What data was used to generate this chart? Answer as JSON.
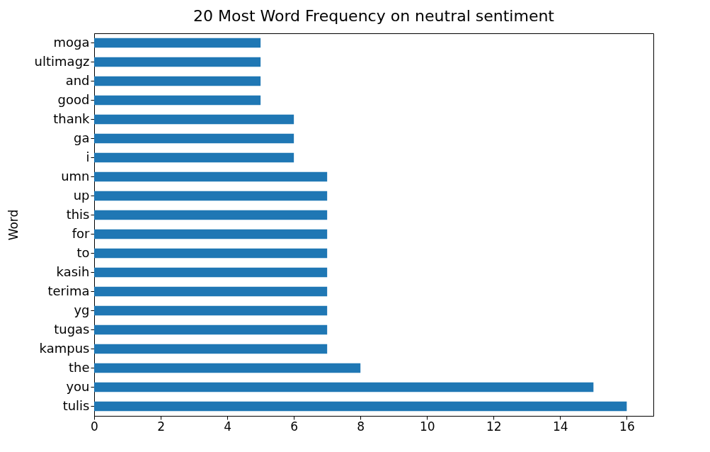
{
  "chart_data": {
    "type": "bar",
    "orientation": "horizontal",
    "title": "20 Most Word Frequency on neutral sentiment",
    "ylabel": "Word",
    "categories": [
      "moga",
      "ultimagz",
      "and",
      "good",
      "thank",
      "ga",
      "i",
      "umn",
      "up",
      "this",
      "for",
      "to",
      "kasih",
      "terima",
      "yg",
      "tugas",
      "kampus",
      "the",
      "you",
      "tulis"
    ],
    "values": [
      5,
      5,
      5,
      5,
      6,
      6,
      6,
      7,
      7,
      7,
      7,
      7,
      7,
      7,
      7,
      7,
      7,
      8,
      15,
      16
    ],
    "color": "#1f77b4",
    "xlim": [
      0,
      16.8
    ],
    "xticks": [
      0,
      2,
      4,
      6,
      8,
      10,
      12,
      14,
      16
    ],
    "grid": false
  }
}
